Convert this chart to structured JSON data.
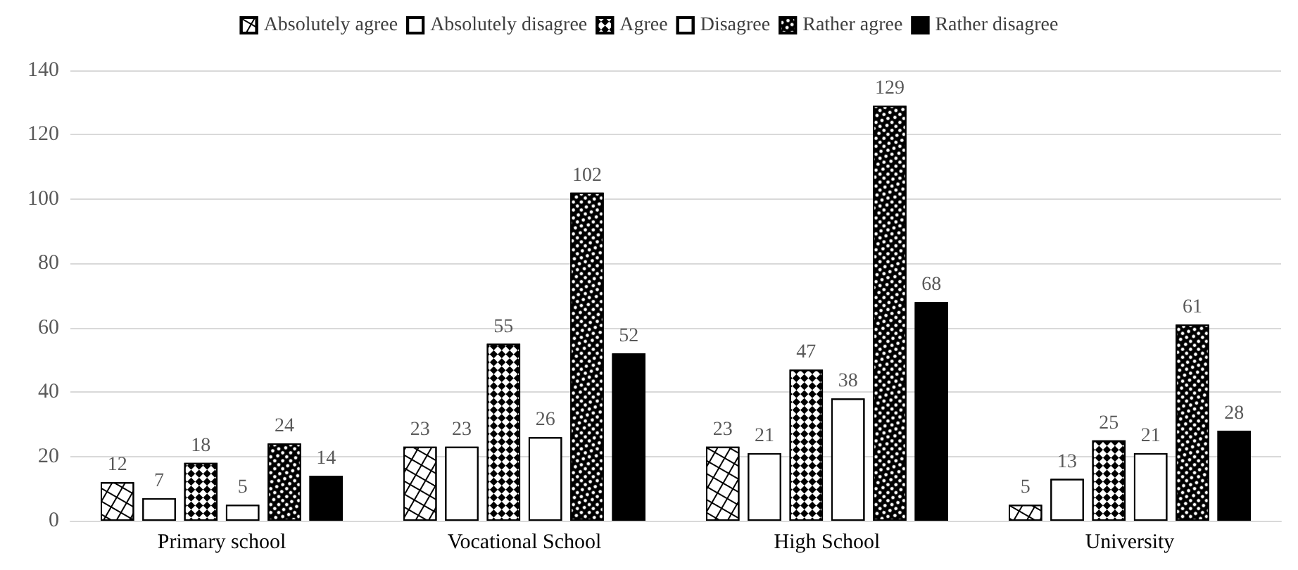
{
  "chart_data": {
    "type": "bar",
    "categories": [
      "Primary school",
      "Vocational School",
      "High School",
      "University"
    ],
    "series": [
      {
        "name": "Absolutely agree",
        "color": "#ffffff",
        "values": [
          12,
          23,
          23,
          5
        ]
      },
      {
        "name": "Absolutely disagree",
        "color": "#ffffff",
        "values": [
          7,
          23,
          21,
          13
        ]
      },
      {
        "name": "Agree",
        "color": "#ffffff",
        "values": [
          18,
          55,
          47,
          25
        ]
      },
      {
        "name": "Disagree",
        "color": "#ffffff",
        "values": [
          5,
          26,
          38,
          21
        ]
      },
      {
        "name": "Rather agree",
        "color": "#000000",
        "values": [
          24,
          102,
          129,
          61
        ]
      },
      {
        "name": "Rather disagree",
        "color": "#000000",
        "values": [
          14,
          52,
          68,
          28
        ]
      }
    ],
    "ylim": [
      0,
      140
    ],
    "yticks": [
      0,
      20,
      40,
      60,
      80,
      100,
      120,
      140
    ],
    "grid": "y",
    "legend": "top",
    "data_labels": true
  }
}
